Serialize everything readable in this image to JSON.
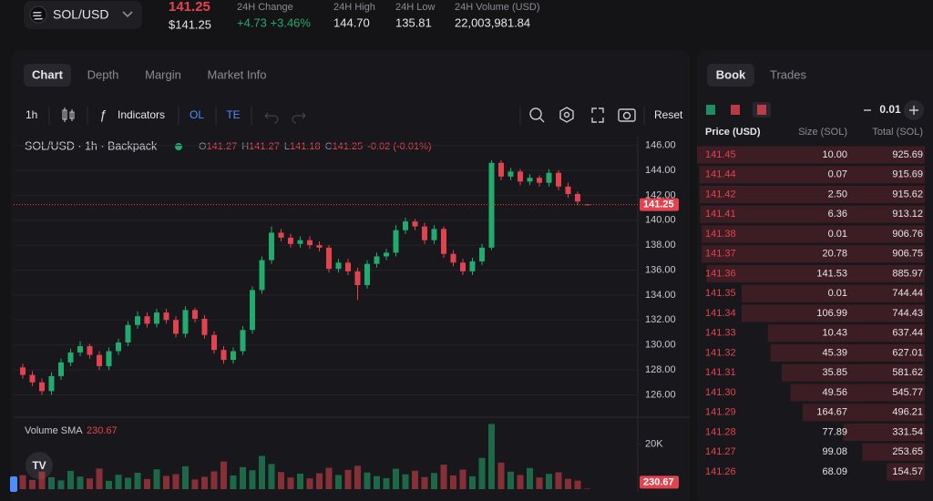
{
  "header": {
    "pair": "SOL/USD",
    "price": "141.25",
    "price_usd": "$141.25",
    "stats": [
      {
        "label": "24H Change",
        "value": "+4.73 +3.46%"
      },
      {
        "label": "24H High",
        "value": "144.70"
      },
      {
        "label": "24H Low",
        "value": "135.81"
      },
      {
        "label": "24H Volume (USD)",
        "value": "22,003,981.84"
      }
    ]
  },
  "chart_tabs": [
    "Chart",
    "Depth",
    "Margin",
    "Market Info"
  ],
  "toolbar": {
    "interval": "1h",
    "indicators": "Indicators",
    "buttons": [
      "OL",
      "TE"
    ],
    "reset": "Reset"
  },
  "chart_data": {
    "type": "candlestick",
    "title": "SOL/USD · 1h · Backpack",
    "ohlc_legend": [
      {
        "label": "O",
        "value": "141.27"
      },
      {
        "label": "H",
        "value": "141.27"
      },
      {
        "label": "L",
        "value": "141.18"
      },
      {
        "label": "C",
        "value": "141.25"
      }
    ],
    "change": "-0.02 (-0.01%)",
    "last_price_label": "141.25",
    "volume_title": "Volume SMA",
    "volume_label": "230.67",
    "up_color": "#22ab6e",
    "down_color": "#e2434f",
    "grid": true,
    "ylim": [
      124.5,
      146.7
    ],
    "yticks": [
      {
        "value": 126,
        "label": "126.00"
      },
      {
        "value": 128,
        "label": "128.00"
      },
      {
        "value": 130,
        "label": "130.00"
      },
      {
        "value": 132,
        "label": "132.00"
      },
      {
        "value": 134,
        "label": "134.00"
      },
      {
        "value": 136,
        "label": "136.00"
      },
      {
        "value": 138,
        "label": "138.00"
      },
      {
        "value": 140,
        "label": "140.00"
      },
      {
        "value": 142,
        "label": "142.00"
      },
      {
        "value": 144,
        "label": "144.00"
      },
      {
        "value": 146,
        "label": "146.00"
      }
    ],
    "y2lim": [
      0,
      29200
    ],
    "y2ticks": [
      {
        "value": 20000,
        "label": "20K"
      }
    ],
    "open": [
      128.2,
      127.6,
      127.0,
      126.3,
      127.5,
      128.6,
      129.4,
      129.9,
      129.2,
      128.3,
      129.5,
      130.2,
      131.6,
      132.3,
      131.7,
      132.6,
      132.0,
      130.9,
      132.8,
      132.1,
      130.8,
      129.6,
      128.8,
      129.5,
      131.2,
      134.4,
      136.8,
      139.0,
      138.6,
      138.1,
      138.4,
      138.0,
      137.8,
      136.1,
      136.6,
      135.9,
      134.8,
      136.5,
      137.1,
      137.4,
      139.2,
      139.9,
      139.5,
      138.4,
      139.3,
      137.3,
      136.6,
      135.9,
      136.7,
      137.8,
      144.6,
      143.5,
      143.9,
      143.1,
      143.4,
      143.0,
      143.8,
      142.7,
      142.1,
      141.27
    ],
    "high": [
      128.5,
      127.9,
      127.3,
      127.8,
      128.9,
      129.7,
      130.3,
      130.1,
      129.5,
      129.8,
      130.5,
      131.9,
      132.7,
      132.6,
      132.9,
      132.9,
      132.3,
      133.1,
      133.0,
      132.4,
      131.1,
      129.9,
      129.8,
      131.5,
      134.7,
      137.1,
      139.5,
      139.3,
      138.9,
      138.7,
      138.7,
      138.3,
      138.0,
      136.9,
      136.9,
      136.2,
      136.8,
      137.4,
      137.7,
      139.6,
      140.2,
      140.1,
      139.8,
      139.6,
      139.5,
      137.6,
      136.9,
      137.0,
      138.1,
      144.8,
      144.8,
      144.2,
      144.1,
      143.7,
      143.6,
      144.1,
      144.0,
      143.0,
      142.3,
      141.27
    ],
    "low": [
      127.3,
      126.7,
      126.0,
      126.0,
      127.2,
      128.3,
      129.1,
      128.9,
      128.0,
      128.0,
      129.2,
      129.9,
      131.3,
      131.4,
      131.4,
      131.7,
      130.6,
      130.6,
      131.8,
      130.5,
      129.3,
      128.5,
      128.5,
      129.2,
      130.9,
      134.1,
      136.5,
      138.3,
      137.8,
      137.8,
      137.7,
      137.5,
      135.8,
      135.8,
      135.6,
      133.6,
      134.5,
      136.2,
      136.8,
      137.1,
      138.9,
      139.2,
      138.1,
      138.1,
      137.0,
      136.3,
      135.6,
      135.6,
      136.4,
      137.6,
      143.2,
      143.2,
      142.8,
      142.8,
      142.7,
      142.7,
      142.4,
      141.8,
      141.2,
      141.18
    ],
    "close": [
      127.6,
      127.0,
      126.3,
      127.5,
      128.6,
      129.4,
      129.9,
      129.2,
      128.3,
      129.5,
      130.2,
      131.6,
      132.3,
      131.7,
      132.6,
      132.0,
      130.9,
      132.8,
      132.1,
      130.8,
      129.6,
      128.8,
      129.5,
      131.2,
      134.4,
      136.8,
      139.0,
      138.6,
      138.1,
      138.4,
      138.0,
      137.8,
      136.1,
      136.6,
      135.9,
      134.8,
      136.5,
      137.1,
      137.4,
      139.2,
      139.9,
      139.5,
      138.4,
      139.3,
      137.3,
      136.6,
      135.9,
      136.7,
      137.8,
      144.6,
      143.5,
      143.9,
      143.1,
      143.4,
      143.0,
      143.8,
      142.7,
      142.1,
      141.5,
      141.25
    ],
    "volume": [
      6200,
      4100,
      7800,
      5300,
      3900,
      8100,
      5600,
      4800,
      9200,
      3700,
      6400,
      5100,
      7300,
      4500,
      8800,
      5900,
      6700,
      10200,
      4300,
      5500,
      7900,
      12300,
      6100,
      9800,
      8400,
      14800,
      11200,
      7600,
      5200,
      6900,
      4800,
      7100,
      9500,
      6300,
      8600,
      10400,
      7400,
      5800,
      4900,
      9100,
      6600,
      8200,
      5400,
      7200,
      10900,
      6100,
      8700,
      5700,
      13900,
      29000,
      11800,
      7800,
      6300,
      9400,
      5200,
      6800,
      7500,
      4600,
      3800,
      230.67
    ]
  },
  "book": {
    "tabs": [
      "Book",
      "Trades"
    ],
    "tick_size": "0.01",
    "columns": [
      "Price (USD)",
      "Size (SOL)",
      "Total (SOL)"
    ],
    "rows": [
      [
        "141.45",
        "10.00",
        "925.69"
      ],
      [
        "141.44",
        "0.07",
        "915.69"
      ],
      [
        "141.42",
        "2.50",
        "915.62"
      ],
      [
        "141.41",
        "6.36",
        "913.12"
      ],
      [
        "141.38",
        "0.01",
        "906.76"
      ],
      [
        "141.37",
        "20.78",
        "906.75"
      ],
      [
        "141.36",
        "141.53",
        "885.97"
      ],
      [
        "141.35",
        "0.01",
        "744.44"
      ],
      [
        "141.34",
        "106.99",
        "744.43"
      ],
      [
        "141.33",
        "10.43",
        "637.44"
      ],
      [
        "141.32",
        "45.39",
        "627.01"
      ],
      [
        "141.31",
        "35.85",
        "581.62"
      ],
      [
        "141.30",
        "49.56",
        "545.77"
      ],
      [
        "141.29",
        "164.67",
        "496.21"
      ],
      [
        "141.28",
        "77.89",
        "331.54"
      ],
      [
        "141.27",
        "99.08",
        "253.65"
      ],
      [
        "141.26",
        "68.09",
        "154.57"
      ]
    ]
  }
}
